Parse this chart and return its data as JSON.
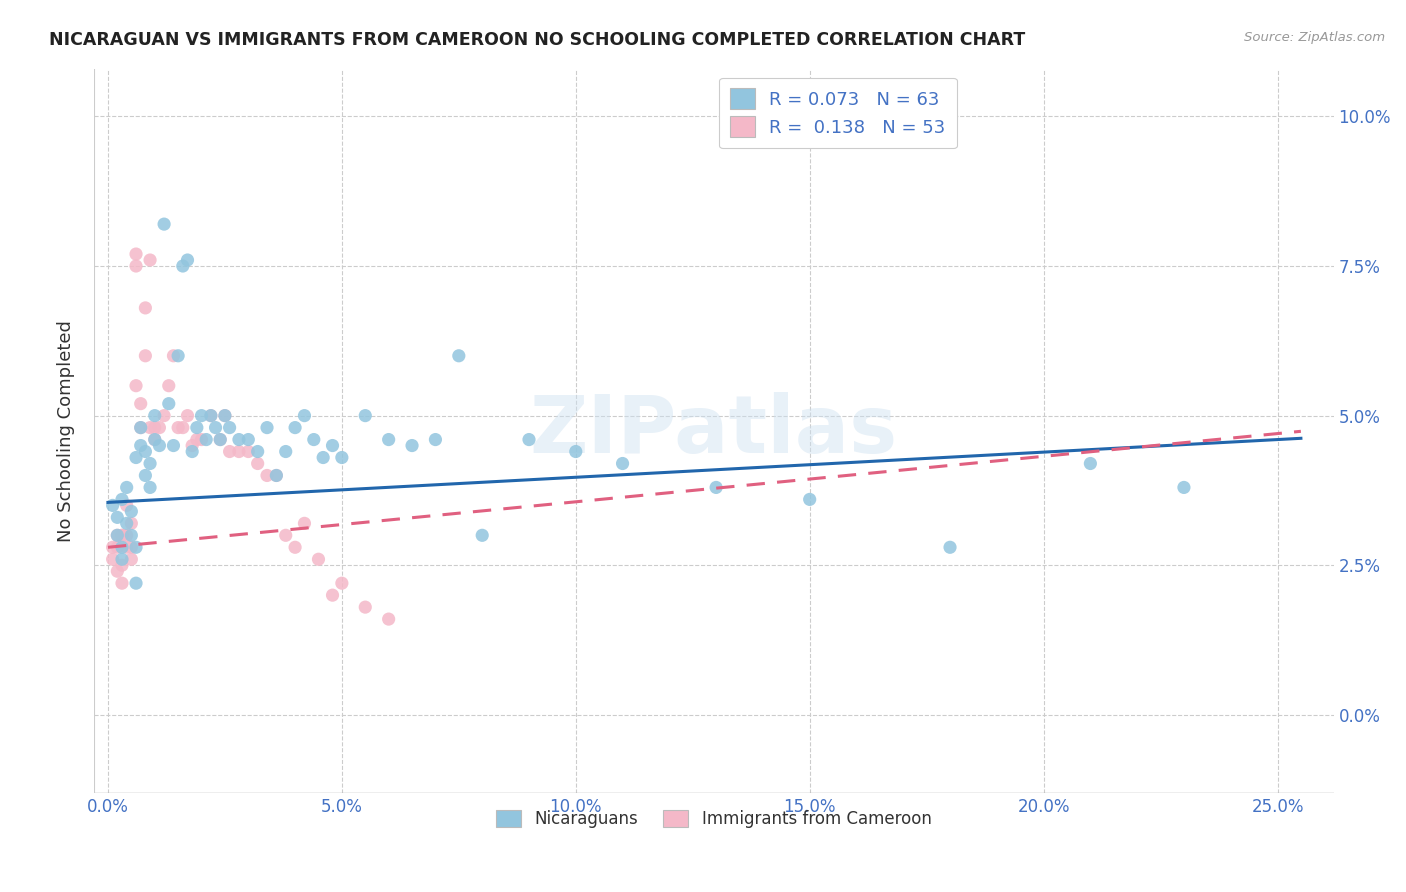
{
  "title": "NICARAGUAN VS IMMIGRANTS FROM CAMEROON NO SCHOOLING COMPLETED CORRELATION CHART",
  "source": "Source: ZipAtlas.com",
  "xlabel_ticks": [
    "0.0%",
    "5.0%",
    "10.0%",
    "15.0%",
    "20.0%",
    "25.0%"
  ],
  "xlabel_tick_vals": [
    0.0,
    0.05,
    0.1,
    0.15,
    0.2,
    0.25
  ],
  "ylabel_ticks": [
    "0.0%",
    "2.5%",
    "5.0%",
    "7.5%",
    "10.0%"
  ],
  "ylabel_tick_vals": [
    0.0,
    0.025,
    0.05,
    0.075,
    0.1
  ],
  "ylabel": "No Schooling Completed",
  "legend_labels": [
    "Nicaraguans",
    "Immigrants from Cameroon"
  ],
  "R_nicaraguan": 0.073,
  "N_nicaraguan": 63,
  "R_cameroon": 0.138,
  "N_cameroon": 53,
  "blue_color": "#92c5de",
  "pink_color": "#f4b8c8",
  "blue_line_color": "#2166ac",
  "pink_line_color": "#e06080",
  "watermark": "ZIPatlas",
  "title_color": "#222222",
  "axis_label_color": "#4472c4",
  "nicaraguan_x": [
    0.001,
    0.002,
    0.002,
    0.003,
    0.003,
    0.003,
    0.004,
    0.004,
    0.005,
    0.005,
    0.006,
    0.006,
    0.006,
    0.007,
    0.007,
    0.008,
    0.008,
    0.009,
    0.009,
    0.01,
    0.01,
    0.011,
    0.012,
    0.013,
    0.014,
    0.015,
    0.016,
    0.017,
    0.018,
    0.019,
    0.02,
    0.021,
    0.022,
    0.023,
    0.024,
    0.025,
    0.026,
    0.028,
    0.03,
    0.032,
    0.034,
    0.036,
    0.038,
    0.04,
    0.042,
    0.044,
    0.046,
    0.048,
    0.05,
    0.055,
    0.06,
    0.065,
    0.07,
    0.075,
    0.08,
    0.09,
    0.1,
    0.11,
    0.13,
    0.15,
    0.18,
    0.21,
    0.23
  ],
  "nicaraguan_y": [
    0.035,
    0.033,
    0.03,
    0.036,
    0.028,
    0.026,
    0.032,
    0.038,
    0.034,
    0.03,
    0.043,
    0.028,
    0.022,
    0.045,
    0.048,
    0.04,
    0.044,
    0.038,
    0.042,
    0.05,
    0.046,
    0.045,
    0.082,
    0.052,
    0.045,
    0.06,
    0.075,
    0.076,
    0.044,
    0.048,
    0.05,
    0.046,
    0.05,
    0.048,
    0.046,
    0.05,
    0.048,
    0.046,
    0.046,
    0.044,
    0.048,
    0.04,
    0.044,
    0.048,
    0.05,
    0.046,
    0.043,
    0.045,
    0.043,
    0.05,
    0.046,
    0.045,
    0.046,
    0.06,
    0.03,
    0.046,
    0.044,
    0.042,
    0.038,
    0.036,
    0.028,
    0.042,
    0.038
  ],
  "cameroon_x": [
    0.001,
    0.001,
    0.002,
    0.002,
    0.002,
    0.003,
    0.003,
    0.003,
    0.003,
    0.004,
    0.004,
    0.004,
    0.005,
    0.005,
    0.005,
    0.006,
    0.006,
    0.006,
    0.007,
    0.007,
    0.008,
    0.008,
    0.009,
    0.009,
    0.01,
    0.01,
    0.011,
    0.012,
    0.013,
    0.014,
    0.015,
    0.016,
    0.017,
    0.018,
    0.019,
    0.02,
    0.022,
    0.024,
    0.025,
    0.026,
    0.028,
    0.03,
    0.032,
    0.034,
    0.036,
    0.038,
    0.04,
    0.042,
    0.045,
    0.048,
    0.05,
    0.055,
    0.06
  ],
  "cameroon_y": [
    0.026,
    0.028,
    0.028,
    0.03,
    0.024,
    0.03,
    0.025,
    0.022,
    0.03,
    0.028,
    0.03,
    0.035,
    0.032,
    0.026,
    0.028,
    0.055,
    0.075,
    0.077,
    0.048,
    0.052,
    0.06,
    0.068,
    0.048,
    0.076,
    0.046,
    0.048,
    0.048,
    0.05,
    0.055,
    0.06,
    0.048,
    0.048,
    0.05,
    0.045,
    0.046,
    0.046,
    0.05,
    0.046,
    0.05,
    0.044,
    0.044,
    0.044,
    0.042,
    0.04,
    0.04,
    0.03,
    0.028,
    0.032,
    0.026,
    0.02,
    0.022,
    0.018,
    0.016
  ],
  "trend_nic_x0": 0.0,
  "trend_nic_y0": 0.0355,
  "trend_nic_x1": 0.25,
  "trend_nic_y1": 0.046,
  "trend_cam_x0": 0.0,
  "trend_cam_y0": 0.028,
  "trend_cam_x1": 0.25,
  "trend_cam_y1": 0.047
}
